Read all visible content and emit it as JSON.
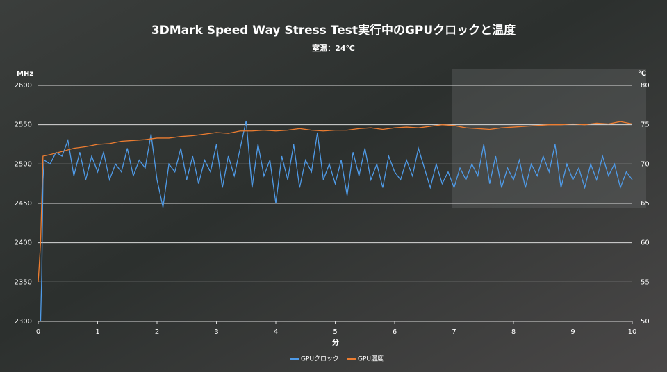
{
  "chart_data": {
    "type": "line",
    "title": "3DMark Speed Way Stress Test実行中のGPUクロックと温度",
    "subtitle": "室温：24℃",
    "xlabel": "分",
    "ylabel": "MHz",
    "y2label": "℃",
    "xlim": [
      0,
      10
    ],
    "xticks": [
      0,
      1,
      2,
      3,
      4,
      5,
      6,
      7,
      8,
      9,
      10
    ],
    "ylim": [
      2300,
      2600
    ],
    "yticks": [
      2300,
      2350,
      2400,
      2450,
      2500,
      2550,
      2600
    ],
    "y2lim": [
      50,
      80
    ],
    "y2ticks": [
      50,
      55,
      60,
      65,
      70,
      75,
      80
    ],
    "grid": true,
    "legend": "bottom",
    "series": [
      {
        "name": "GPUクロック",
        "color": "#4f9be8",
        "x": [
          0.04,
          0.06,
          0.08,
          0.1,
          0.2,
          0.3,
          0.4,
          0.5,
          0.6,
          0.7,
          0.8,
          0.9,
          1.0,
          1.1,
          1.2,
          1.3,
          1.4,
          1.5,
          1.6,
          1.7,
          1.8,
          1.9,
          2.0,
          2.1,
          2.2,
          2.3,
          2.4,
          2.5,
          2.6,
          2.7,
          2.8,
          2.9,
          3.0,
          3.1,
          3.2,
          3.3,
          3.4,
          3.5,
          3.6,
          3.7,
          3.8,
          3.9,
          4.0,
          4.1,
          4.2,
          4.3,
          4.4,
          4.5,
          4.6,
          4.7,
          4.8,
          4.9,
          5.0,
          5.1,
          5.2,
          5.3,
          5.4,
          5.5,
          5.6,
          5.7,
          5.8,
          5.9,
          6.0,
          6.1,
          6.2,
          6.3,
          6.4,
          6.5,
          6.6,
          6.7,
          6.8,
          6.9,
          7.0,
          7.1,
          7.2,
          7.3,
          7.4,
          7.5,
          7.6,
          7.7,
          7.8,
          7.9,
          8.0,
          8.1,
          8.2,
          8.3,
          8.4,
          8.5,
          8.6,
          8.7,
          8.8,
          8.9,
          9.0,
          9.1,
          9.2,
          9.3,
          9.4,
          9.5,
          9.6,
          9.7,
          9.8,
          9.9,
          10.0
        ],
        "values": [
          2300,
          2360,
          2480,
          2505,
          2500,
          2515,
          2510,
          2530,
          2485,
          2515,
          2480,
          2510,
          2490,
          2515,
          2480,
          2500,
          2490,
          2520,
          2485,
          2505,
          2495,
          2538,
          2480,
          2445,
          2500,
          2490,
          2520,
          2480,
          2510,
          2475,
          2505,
          2490,
          2525,
          2470,
          2510,
          2485,
          2520,
          2555,
          2470,
          2525,
          2485,
          2505,
          2450,
          2510,
          2480,
          2525,
          2470,
          2505,
          2490,
          2540,
          2480,
          2500,
          2475,
          2505,
          2460,
          2515,
          2485,
          2520,
          2480,
          2500,
          2470,
          2510,
          2490,
          2480,
          2505,
          2485,
          2520,
          2495,
          2470,
          2500,
          2475,
          2490,
          2470,
          2495,
          2480,
          2500,
          2485,
          2525,
          2475,
          2510,
          2470,
          2495,
          2480,
          2505,
          2470,
          2500,
          2485,
          2510,
          2490,
          2525,
          2470,
          2500,
          2480,
          2495,
          2470,
          2500,
          2480,
          2510,
          2485,
          2500,
          2470,
          2490,
          2480
        ]
      },
      {
        "name": "GPU温度",
        "color": "#ed7d31",
        "axis": "y2",
        "x": [
          0,
          0.04,
          0.08,
          0.2,
          0.4,
          0.6,
          0.8,
          1.0,
          1.2,
          1.4,
          1.6,
          1.8,
          2.0,
          2.2,
          2.4,
          2.6,
          2.8,
          3.0,
          3.2,
          3.4,
          3.6,
          3.8,
          4.0,
          4.2,
          4.4,
          4.6,
          4.8,
          5.0,
          5.2,
          5.4,
          5.6,
          5.8,
          6.0,
          6.2,
          6.4,
          6.6,
          6.8,
          7.0,
          7.2,
          7.4,
          7.6,
          7.8,
          8.0,
          8.2,
          8.4,
          8.6,
          8.8,
          9.0,
          9.2,
          9.4,
          9.6,
          9.8,
          10.0
        ],
        "values": [
          55,
          60,
          71,
          71.2,
          71.6,
          72,
          72.2,
          72.5,
          72.6,
          72.9,
          73,
          73.1,
          73.3,
          73.3,
          73.5,
          73.6,
          73.8,
          74,
          73.9,
          74.2,
          74.2,
          74.3,
          74.2,
          74.3,
          74.5,
          74.3,
          74.2,
          74.3,
          74.3,
          74.5,
          74.6,
          74.4,
          74.6,
          74.7,
          74.6,
          74.8,
          75,
          74.9,
          74.6,
          74.5,
          74.4,
          74.6,
          74.7,
          74.8,
          74.9,
          75,
          75,
          75.1,
          75,
          75.2,
          75.1,
          75.4,
          75.1
        ]
      }
    ]
  }
}
